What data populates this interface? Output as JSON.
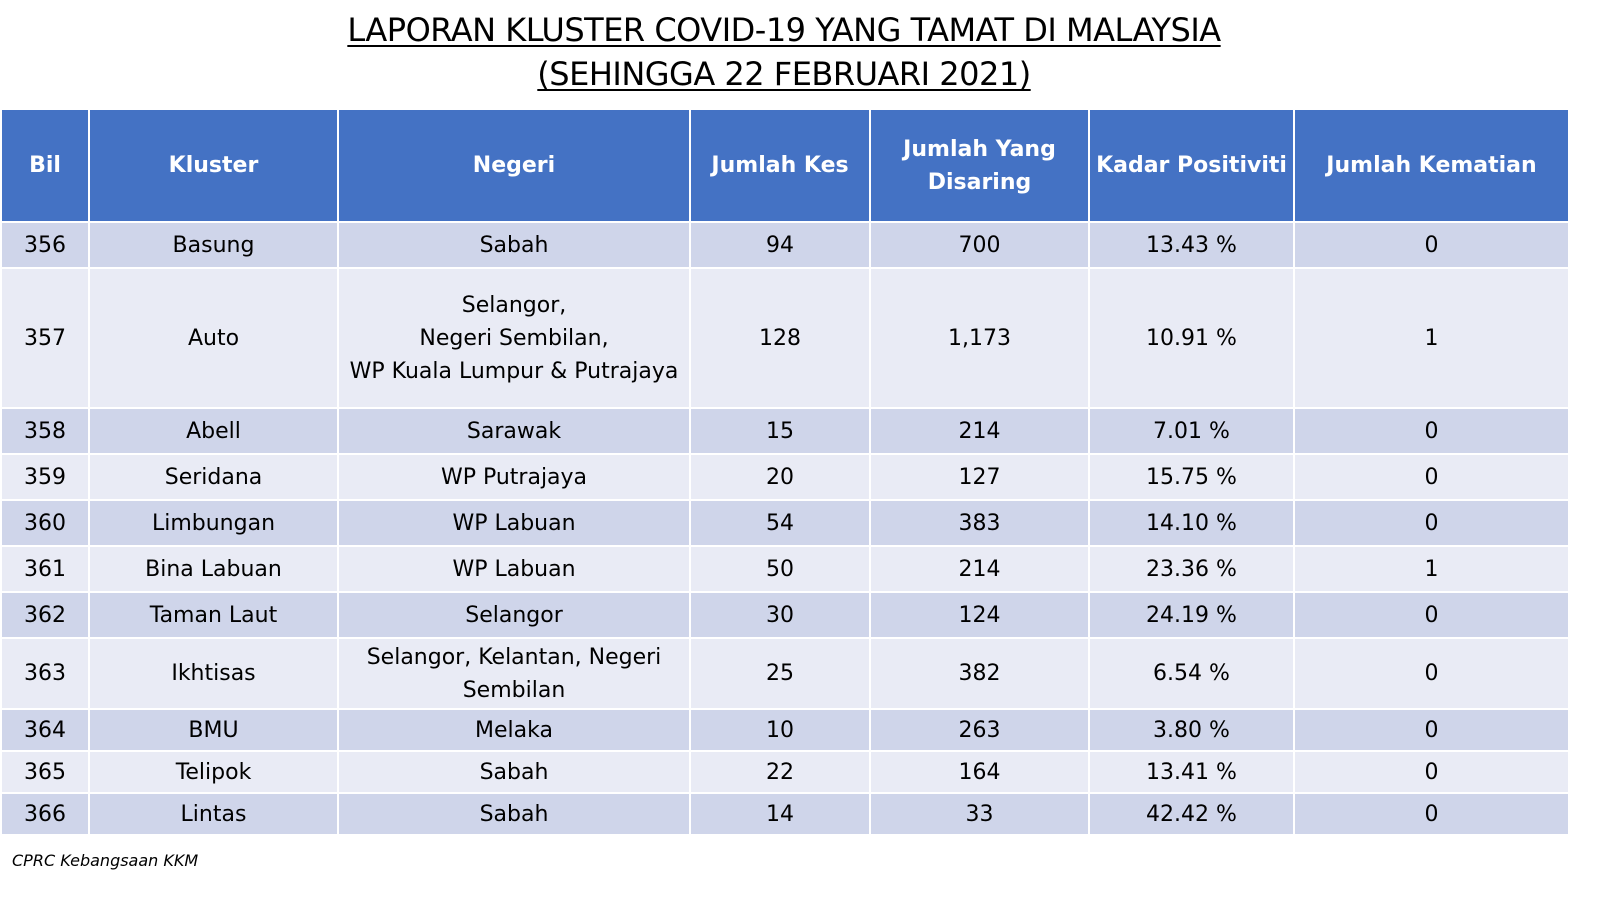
{
  "title": {
    "line1": "LAPORAN KLUSTER COVID-19 YANG TAMAT DI MALAYSIA",
    "line2": "(SEHINGGA 22 FEBRUARI 2021)"
  },
  "table": {
    "headers": [
      "Bil",
      "Kluster",
      "Negeri",
      "Jumlah Kes",
      "Jumlah Yang Disaring",
      "Kadar Positiviti",
      "Jumlah Kematian"
    ],
    "rows": [
      {
        "bil": "356",
        "kluster": "Basung",
        "negeri": "Sabah",
        "kes": "94",
        "disaring": "700",
        "positiviti": "13.43 %",
        "kematian": "0"
      },
      {
        "bil": "357",
        "kluster": "Auto",
        "negeri": "Selangor,\nNegeri Sembilan,\nWP Kuala Lumpur & Putrajaya",
        "kes": "128",
        "disaring": "1,173",
        "positiviti": "10.91 %",
        "kematian": "1"
      },
      {
        "bil": "358",
        "kluster": "Abell",
        "negeri": "Sarawak",
        "kes": "15",
        "disaring": "214",
        "positiviti": "7.01 %",
        "kematian": "0"
      },
      {
        "bil": "359",
        "kluster": "Seridana",
        "negeri": "WP Putrajaya",
        "kes": "20",
        "disaring": "127",
        "positiviti": "15.75 %",
        "kematian": "0"
      },
      {
        "bil": "360",
        "kluster": "Limbungan",
        "negeri": "WP Labuan",
        "kes": "54",
        "disaring": "383",
        "positiviti": "14.10 %",
        "kematian": "0"
      },
      {
        "bil": "361",
        "kluster": "Bina Labuan",
        "negeri": "WP Labuan",
        "kes": "50",
        "disaring": "214",
        "positiviti": "23.36 %",
        "kematian": "1"
      },
      {
        "bil": "362",
        "kluster": "Taman Laut",
        "negeri": "Selangor",
        "kes": "30",
        "disaring": "124",
        "positiviti": "24.19 %",
        "kematian": "0"
      },
      {
        "bil": "363",
        "kluster": "Ikhtisas",
        "negeri": "Selangor, Kelantan, Negeri Sembilan",
        "kes": "25",
        "disaring": "382",
        "positiviti": "6.54 %",
        "kematian": "0"
      },
      {
        "bil": "364",
        "kluster": "BMU",
        "negeri": "Melaka",
        "kes": "10",
        "disaring": "263",
        "positiviti": "3.80 %",
        "kematian": "0"
      },
      {
        "bil": "365",
        "kluster": "Telipok",
        "negeri": "Sabah",
        "kes": "22",
        "disaring": "164",
        "positiviti": "13.41 %",
        "kematian": "0"
      },
      {
        "bil": "366",
        "kluster": "Lintas",
        "negeri": "Sabah",
        "kes": "14",
        "disaring": "33",
        "positiviti": "42.42 %",
        "kematian": "0"
      }
    ]
  },
  "footer": {
    "source": "CPRC Kebangsaan KKM"
  }
}
